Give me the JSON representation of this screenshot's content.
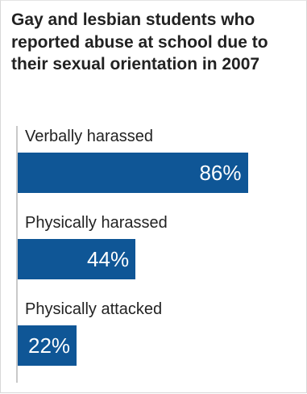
{
  "chart_data": {
    "type": "bar",
    "orientation": "horizontal",
    "title": "Gay and lesbian students who reported abuse at school due to their sexual orientation in 2007",
    "categories": [
      "Verbally harassed",
      "Physically harassed",
      "Physically attacked"
    ],
    "values": [
      86,
      44,
      22
    ],
    "value_labels": [
      "86%",
      "44%",
      "22%"
    ],
    "unit": "%",
    "xlim": [
      0,
      100
    ],
    "grid": false,
    "legend": "none",
    "bar_color": "#0f5696"
  }
}
